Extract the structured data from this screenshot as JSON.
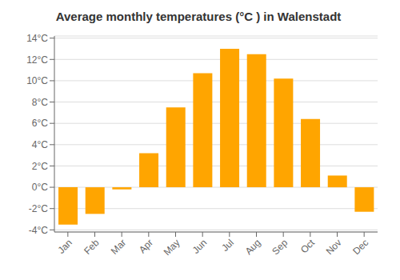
{
  "chart_data": {
    "type": "bar",
    "title": "Average monthly temperatures (°C ) in Walenstadt",
    "categories": [
      "Jan",
      "Feb",
      "Mar",
      "Apr",
      "May",
      "Jun",
      "Jul",
      "Aug",
      "Sep",
      "Oct",
      "Nov",
      "Dec"
    ],
    "values": [
      -3.5,
      -2.5,
      -0.2,
      3.2,
      7.5,
      10.7,
      13.0,
      12.5,
      10.2,
      6.4,
      1.1,
      -2.3
    ],
    "color": "#FFA500",
    "ylim": [
      -4.2,
      14.2
    ],
    "yticks": [
      {
        "value": -4,
        "label": "-4°C"
      },
      {
        "value": -2,
        "label": "-2°C"
      },
      {
        "value": 0,
        "label": "0°C"
      },
      {
        "value": 2,
        "label": "2°C"
      },
      {
        "value": 4,
        "label": "4°C"
      },
      {
        "value": 6,
        "label": "6°C"
      },
      {
        "value": 8,
        "label": "8°C"
      },
      {
        "value": 10,
        "label": "10°C"
      },
      {
        "value": 12,
        "label": "12°C"
      },
      {
        "value": 14,
        "label": "14°C"
      }
    ],
    "grid": true
  }
}
